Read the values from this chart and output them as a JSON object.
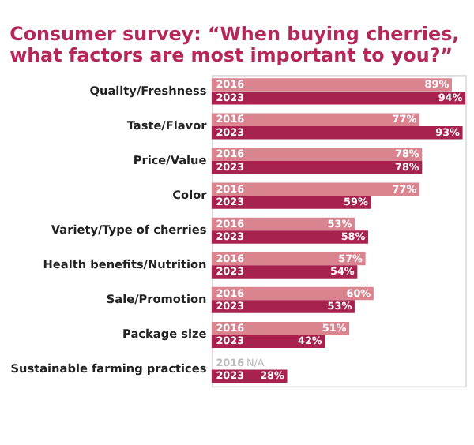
{
  "chart_data": {
    "type": "bar",
    "orientation": "horizontal",
    "title": "Consumer survey: “When buying cherries, what factors are most important to you?”",
    "categories": [
      "Quality/Freshness",
      "Taste/Flavor",
      "Price/Value",
      "Color",
      "Variety/Type of cherries",
      "Health benefits/Nutrition",
      "Sale/Promotion",
      "Package size",
      "Sustainable farming practices"
    ],
    "series": [
      {
        "name": "2016",
        "color": "#d9848f",
        "values": [
          89,
          77,
          78,
          77,
          53,
          57,
          60,
          51,
          null
        ],
        "value_labels": [
          "89%",
          "77%",
          "78%",
          "77%",
          "53%",
          "57%",
          "60%",
          "51%",
          "N/A"
        ]
      },
      {
        "name": "2023",
        "color": "#a8224f",
        "values": [
          94,
          93,
          78,
          59,
          58,
          54,
          53,
          42,
          28
        ],
        "value_labels": [
          "94%",
          "93%",
          "78%",
          "59%",
          "58%",
          "54%",
          "53%",
          "42%",
          "28%"
        ]
      }
    ]
  }
}
